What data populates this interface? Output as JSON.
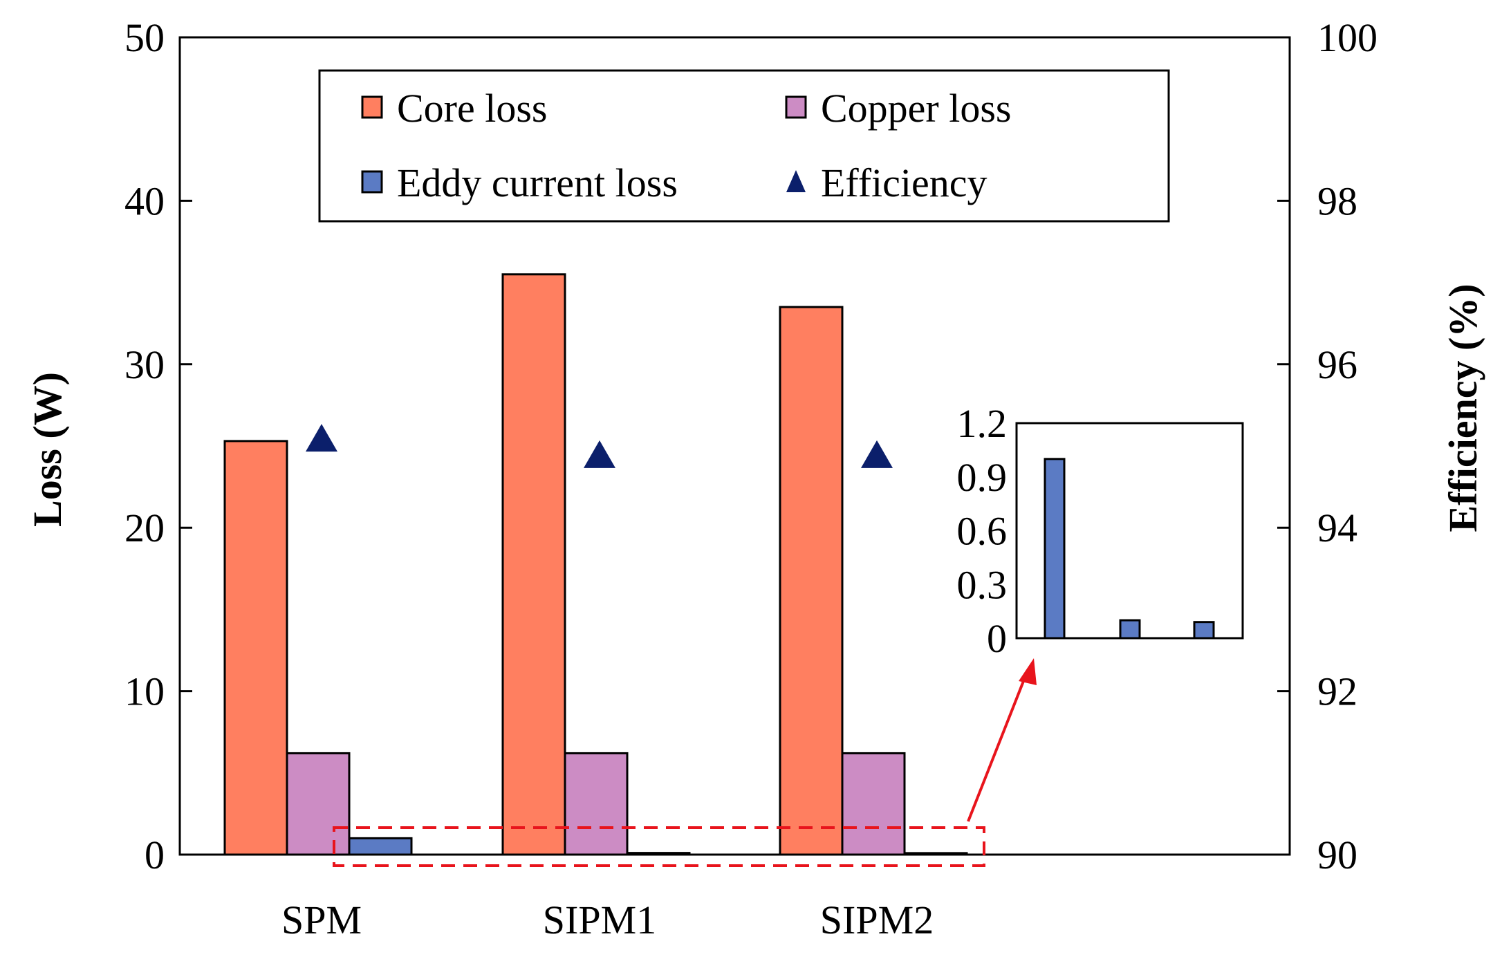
{
  "chart_data": {
    "type": "bar",
    "categories": [
      "SPM",
      "SIPM1",
      "SIPM2"
    ],
    "series": [
      {
        "name": "Core loss",
        "color": "#FF7F60",
        "values": [
          25.3,
          35.5,
          33.5
        ]
      },
      {
        "name": "Copper loss",
        "color": "#CC8CC4",
        "values": [
          6.2,
          6.2,
          6.2
        ]
      },
      {
        "name": "Eddy current loss",
        "color": "#5B7BC4",
        "values": [
          1.0,
          0.1,
          0.09
        ]
      }
    ],
    "efficiency": {
      "name": "Efficiency",
      "color": "#0B1F6B",
      "values": [
        95.1,
        94.9,
        94.9
      ]
    },
    "ylabel_left": "Loss (W)",
    "ylabel_right": "Efficiency (%)",
    "ylim_left": [
      0,
      50
    ],
    "yticks_left": [
      "0",
      "10",
      "20",
      "30",
      "40",
      "50"
    ],
    "ylim_right": [
      90,
      100
    ],
    "yticks_right": [
      "90",
      "92",
      "94",
      "96",
      "98",
      "100"
    ],
    "legend_position": "top-center",
    "inset": {
      "series": "Eddy current loss",
      "values": [
        1.0,
        0.1,
        0.09
      ],
      "ylim": [
        0,
        1.2
      ],
      "yticks": [
        "0",
        "0.3",
        "0.6",
        "0.9",
        "1.2"
      ]
    },
    "highlight": {
      "color": "#E8141C",
      "style": "dashed",
      "target": "eddy current bars zoomed in inset"
    }
  }
}
